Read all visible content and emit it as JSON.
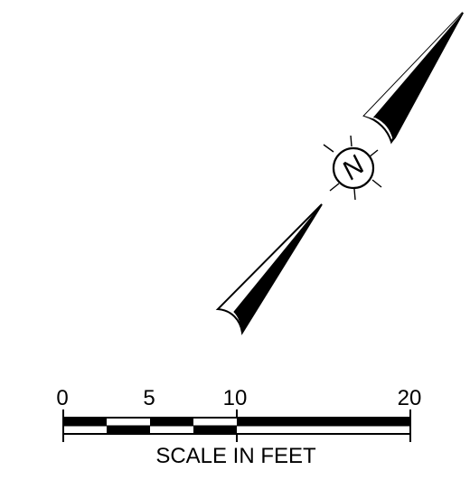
{
  "north_arrow": {
    "letter": "N",
    "icon": "north-arrow-icon"
  },
  "scale_bar": {
    "tick_labels": [
      "0",
      "5",
      "10",
      "20"
    ],
    "caption": "SCALE IN FEET",
    "fill_color": "#000000",
    "line_color": "#000000"
  }
}
